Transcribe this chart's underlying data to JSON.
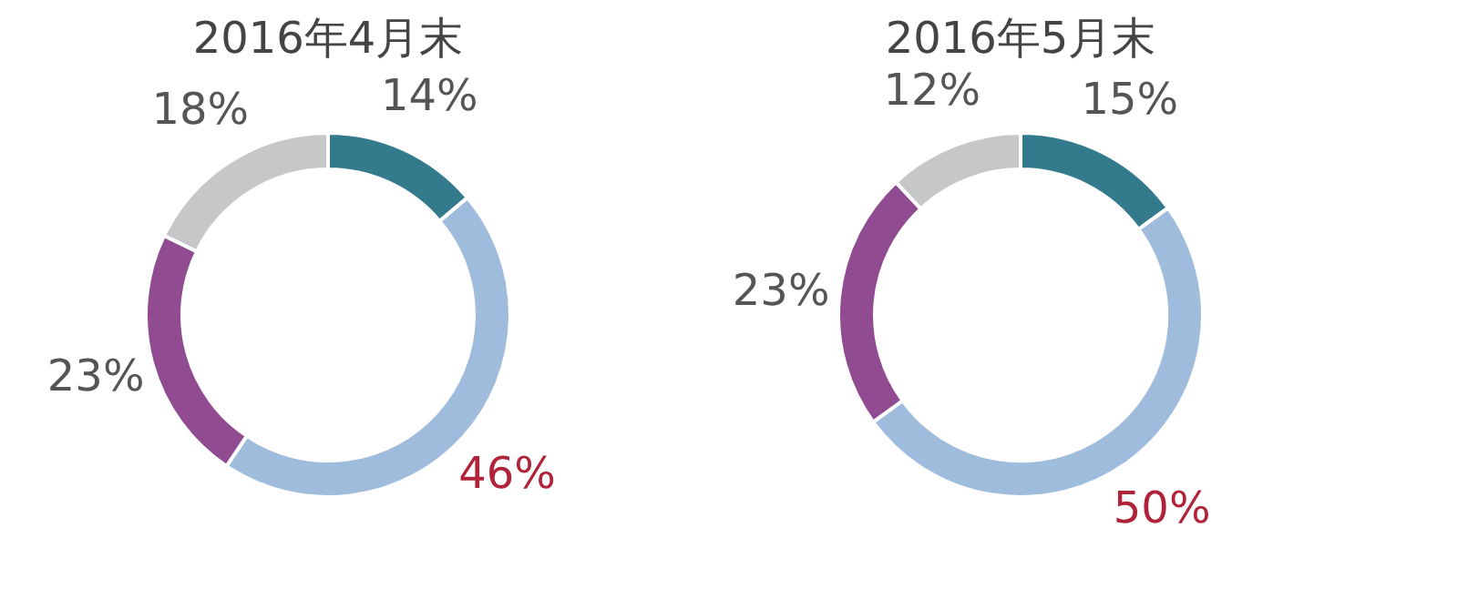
{
  "chart_data": [
    {
      "type": "donut",
      "title": "2016年4月末",
      "categories": [
        null,
        null,
        null,
        null
      ],
      "values": [
        14,
        46,
        23,
        18
      ],
      "colors": [
        "#337a8c",
        "#a0bcdc",
        "#914b91",
        "#c6c7c9"
      ],
      "value_labels": [
        "14%",
        "46%",
        "23%",
        "18%"
      ]
    },
    {
      "type": "donut",
      "title": "2016年5月末",
      "categories": [
        null,
        null,
        null,
        null
      ],
      "values": [
        15,
        50,
        23,
        12
      ],
      "colors": [
        "#337a8c",
        "#a0bcdc",
        "#914b91",
        "#c6c7c9"
      ],
      "value_labels": [
        "15%",
        "50%",
        "23%",
        "12%"
      ]
    }
  ]
}
